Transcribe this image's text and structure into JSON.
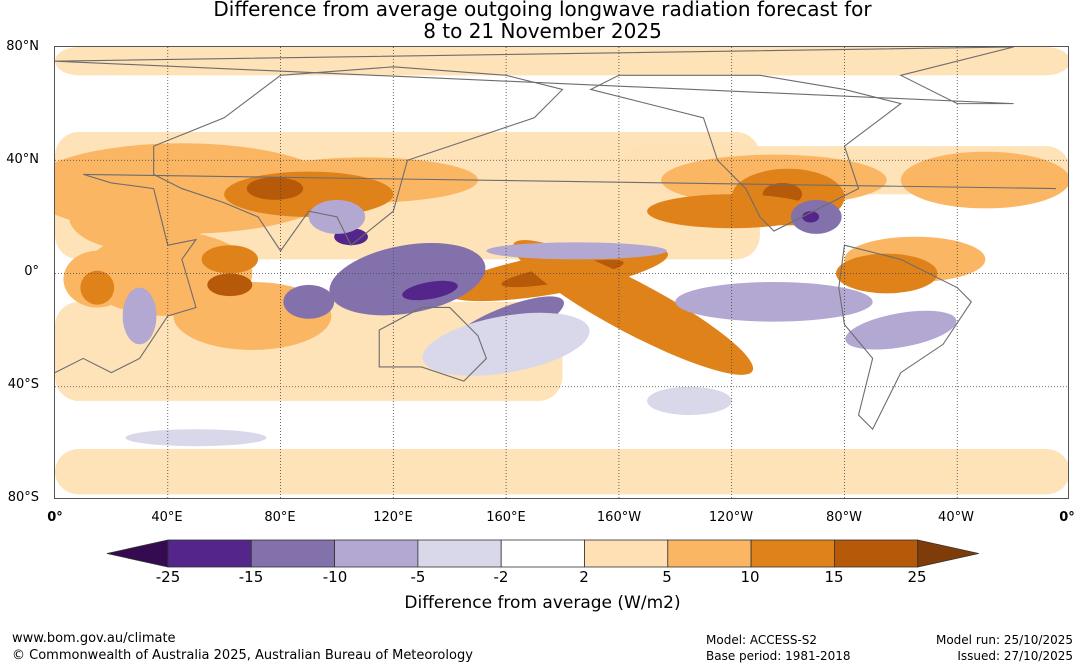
{
  "title": {
    "line1": "Difference from average outgoing longwave radiation forecast for",
    "line2": "8 to 21 November 2025"
  },
  "map": {
    "lat_labels": [
      "80°N",
      "40°N",
      "0°",
      "40°S",
      "80°S"
    ],
    "lon_labels": [
      "0°",
      "40°E",
      "80°E",
      "120°E",
      "160°E",
      "160°W",
      "120°W",
      "80°W",
      "40°W",
      "0°"
    ],
    "anomaly_regions": [
      {
        "level": "b3",
        "lon": 178,
        "lat": 0,
        "rx": 40,
        "ry": 7,
        "rot": -10
      },
      {
        "level": "b4",
        "lon": 180,
        "lat": 0,
        "rx": 22,
        "ry": 3,
        "rot": -10
      },
      {
        "level": "b4",
        "lon": 215,
        "lat": -18,
        "rx": 28,
        "ry": 4,
        "rot": 28
      },
      {
        "level": "b3",
        "lon": 205,
        "lat": -12,
        "rx": 48,
        "ry": 9,
        "rot": 28
      },
      {
        "level": "b3",
        "lon": 90,
        "lat": 28,
        "rx": 30,
        "ry": 8,
        "rot": 0
      },
      {
        "level": "b4",
        "lon": 78,
        "lat": 30,
        "rx": 10,
        "ry": 4,
        "rot": 0
      },
      {
        "level": "b3",
        "lon": 260,
        "lat": 27,
        "rx": 20,
        "ry": 10,
        "rot": 0
      },
      {
        "level": "b4",
        "lon": 258,
        "lat": 28,
        "rx": 7,
        "ry": 4,
        "rot": 0
      },
      {
        "level": "b3",
        "lon": 62,
        "lat": 5,
        "rx": 10,
        "ry": 5,
        "rot": 0
      },
      {
        "level": "b4",
        "lon": 62,
        "lat": -4,
        "rx": 8,
        "ry": 4,
        "rot": 0
      },
      {
        "level": "b3",
        "lon": 15,
        "lat": -5,
        "rx": 6,
        "ry": 6,
        "rot": 0
      },
      {
        "level": "b3",
        "lon": 295,
        "lat": 0,
        "rx": 18,
        "ry": 7,
        "rot": 0
      },
      {
        "level": "b3",
        "lon": 240,
        "lat": 22,
        "rx": 30,
        "ry": 6,
        "rot": 0
      },
      {
        "level": "b2",
        "lon": 30,
        "lat": 20,
        "rx": 25,
        "ry": 12,
        "rot": 0
      },
      {
        "level": "a3",
        "lon": 125,
        "lat": -2,
        "rx": 28,
        "ry": 12,
        "rot": -10
      },
      {
        "level": "a4",
        "lon": 133,
        "lat": -6,
        "rx": 10,
        "ry": 3,
        "rot": -10
      },
      {
        "level": "a4",
        "lon": 105,
        "lat": 13,
        "rx": 6,
        "ry": 3,
        "rot": 0
      },
      {
        "level": "a3",
        "lon": 160,
        "lat": -18,
        "rx": 22,
        "ry": 6,
        "rot": -22
      },
      {
        "level": "a3",
        "lon": 90,
        "lat": -10,
        "rx": 9,
        "ry": 6,
        "rot": 0
      },
      {
        "level": "a3",
        "lon": 270,
        "lat": 20,
        "rx": 9,
        "ry": 6,
        "rot": 0
      },
      {
        "level": "a4",
        "lon": 268,
        "lat": 20,
        "rx": 3,
        "ry": 2,
        "rot": 0
      },
      {
        "level": "a2",
        "lon": 185,
        "lat": 8,
        "rx": 32,
        "ry": 3,
        "rot": 0
      },
      {
        "level": "a2",
        "lon": 255,
        "lat": -10,
        "rx": 35,
        "ry": 7,
        "rot": 0
      },
      {
        "level": "a2",
        "lon": 300,
        "lat": -20,
        "rx": 20,
        "ry": 6,
        "rot": -10
      },
      {
        "level": "a2",
        "lon": 30,
        "lat": -15,
        "rx": 6,
        "ry": 10,
        "rot": 0
      },
      {
        "level": "a2",
        "lon": 100,
        "lat": 20,
        "rx": 10,
        "ry": 6,
        "rot": 0
      },
      {
        "level": "a1",
        "lon": 50,
        "lat": -58,
        "rx": 25,
        "ry": 3,
        "rot": 0
      },
      {
        "level": "a1",
        "lon": 225,
        "lat": -45,
        "rx": 15,
        "ry": 5,
        "rot": 0
      },
      {
        "level": "a1",
        "lon": 160,
        "lat": -25,
        "rx": 30,
        "ry": 10,
        "rot": -10
      }
    ]
  },
  "colorbar": {
    "ticks": [
      "-25",
      "-15",
      "-10",
      "-5",
      "-2",
      "2",
      "5",
      "10",
      "15",
      "25"
    ],
    "colors": [
      "#340a50",
      "#54268c",
      "#8371ab",
      "#b2a8d1",
      "#d9d7ea",
      "#ffffff",
      "#fee0b4",
      "#fbb663",
      "#e0821a",
      "#b65909",
      "#7f3b08"
    ],
    "label": "Difference from average (W/m2)"
  },
  "footer": {
    "url": "www.bom.gov.au/climate",
    "copyright": "© Commonwealth of Australia 2025, Australian Bureau of Meteorology",
    "model": "Model: ACCESS-S2",
    "base_period": "Base period: 1981-2018",
    "model_run": "Model run: 25/10/2025",
    "issued": "Issued: 27/10/2025"
  }
}
